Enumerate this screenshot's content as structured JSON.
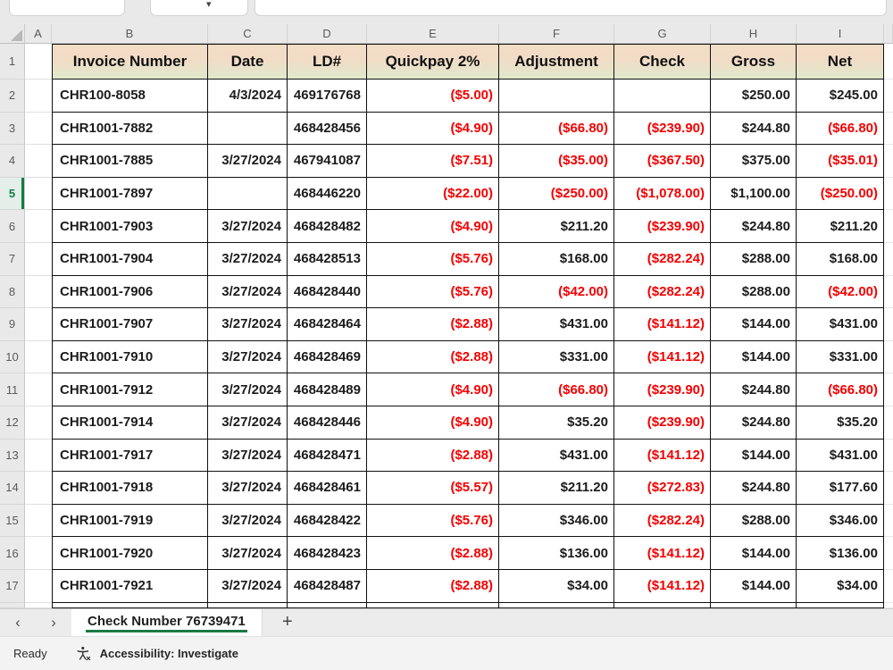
{
  "grid": {
    "column_letters": [
      "A",
      "B",
      "C",
      "D",
      "E",
      "F",
      "G",
      "H",
      "I"
    ],
    "header_row_number": 1
  },
  "table": {
    "headers": [
      "Invoice Number",
      "Date",
      "LD#",
      "Quickpay 2%",
      "Adjustment",
      "Check",
      "Gross",
      "Net"
    ],
    "rows": [
      {
        "n": 2,
        "cells": [
          "CHR100-8058",
          "4/3/2024",
          "469176768",
          "($5.00)",
          "",
          "",
          "$250.00",
          "$245.00"
        ]
      },
      {
        "n": 3,
        "cells": [
          "CHR1001-7882",
          "",
          "468428456",
          "($4.90)",
          "($66.80)",
          "($239.90)",
          "$244.80",
          "($66.80)"
        ]
      },
      {
        "n": 4,
        "cells": [
          "CHR1001-7885",
          "3/27/2024",
          "467941087",
          "($7.51)",
          "($35.00)",
          "($367.50)",
          "$375.00",
          "($35.01)"
        ]
      },
      {
        "n": 5,
        "cells": [
          "CHR1001-7897",
          "",
          "468446220",
          "($22.00)",
          "($250.00)",
          "($1,078.00)",
          "$1,100.00",
          "($250.00)"
        ]
      },
      {
        "n": 6,
        "cells": [
          "CHR1001-7903",
          "3/27/2024",
          "468428482",
          "($4.90)",
          "$211.20",
          "($239.90)",
          "$244.80",
          "$211.20"
        ]
      },
      {
        "n": 7,
        "cells": [
          "CHR1001-7904",
          "3/27/2024",
          "468428513",
          "($5.76)",
          "$168.00",
          "($282.24)",
          "$288.00",
          "$168.00"
        ]
      },
      {
        "n": 8,
        "cells": [
          "CHR1001-7906",
          "3/27/2024",
          "468428440",
          "($5.76)",
          "($42.00)",
          "($282.24)",
          "$288.00",
          "($42.00)"
        ]
      },
      {
        "n": 9,
        "cells": [
          "CHR1001-7907",
          "3/27/2024",
          "468428464",
          "($2.88)",
          "$431.00",
          "($141.12)",
          "$144.00",
          "$431.00"
        ]
      },
      {
        "n": 10,
        "cells": [
          "CHR1001-7910",
          "3/27/2024",
          "468428469",
          "($2.88)",
          "$331.00",
          "($141.12)",
          "$144.00",
          "$331.00"
        ]
      },
      {
        "n": 11,
        "cells": [
          "CHR1001-7912",
          "3/27/2024",
          "468428489",
          "($4.90)",
          "($66.80)",
          "($239.90)",
          "$244.80",
          "($66.80)"
        ]
      },
      {
        "n": 12,
        "cells": [
          "CHR1001-7914",
          "3/27/2024",
          "468428446",
          "($4.90)",
          "$35.20",
          "($239.90)",
          "$244.80",
          "$35.20"
        ]
      },
      {
        "n": 13,
        "cells": [
          "CHR1001-7917",
          "3/27/2024",
          "468428471",
          "($2.88)",
          "$431.00",
          "($141.12)",
          "$144.00",
          "$431.00"
        ]
      },
      {
        "n": 14,
        "cells": [
          "CHR1001-7918",
          "3/27/2024",
          "468428461",
          "($5.57)",
          "$211.20",
          "($272.83)",
          "$244.80",
          "$177.60"
        ]
      },
      {
        "n": 15,
        "cells": [
          "CHR1001-7919",
          "3/27/2024",
          "468428422",
          "($5.76)",
          "$346.00",
          "($282.24)",
          "$288.00",
          "$346.00"
        ]
      },
      {
        "n": 16,
        "cells": [
          "CHR1001-7920",
          "3/27/2024",
          "468428423",
          "($2.88)",
          "$136.00",
          "($141.12)",
          "$144.00",
          "$136.00"
        ]
      },
      {
        "n": 17,
        "cells": [
          "CHR1001-7921",
          "3/27/2024",
          "468428487",
          "($2.88)",
          "$34.00",
          "($141.12)",
          "$144.00",
          "$34.00"
        ]
      }
    ]
  },
  "selection": {
    "active_row": 5
  },
  "sheet_bar": {
    "tab_label": "Check Number 76739471",
    "prev_glyph": "‹",
    "next_glyph": "›",
    "add_glyph": "+"
  },
  "status_bar": {
    "mode": "Ready",
    "accessibility": "Accessibility: Investigate"
  },
  "colors": {
    "header_gradient_top": "#f3ddc5",
    "header_gradient_bottom": "#dfe9cd",
    "negative_text": "#f40000",
    "accent_green": "#107c41"
  }
}
